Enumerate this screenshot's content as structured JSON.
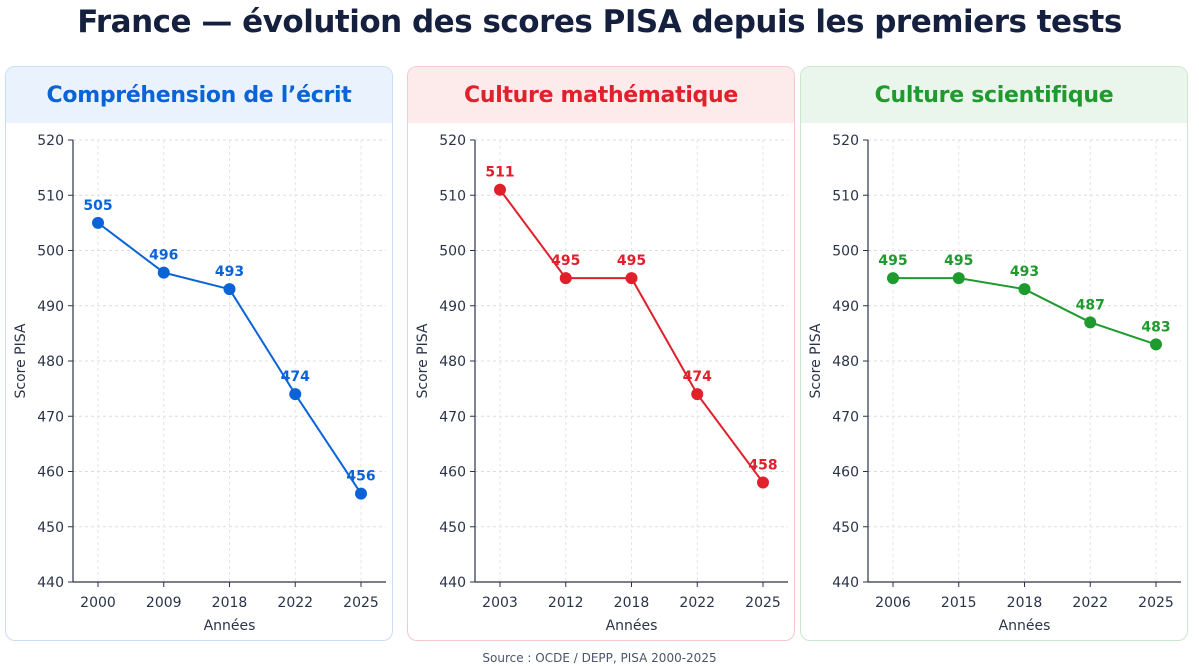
{
  "title": "France — évolution des scores PISA depuis les premiers tests",
  "source": "Source : OCDE / DEPP, PISA 2000-2025",
  "chart_data": [
    {
      "type": "line",
      "title": "Compréhension de l’écrit",
      "xlabel": "Années",
      "ylabel": "Score PISA",
      "ylim": [
        440,
        520
      ],
      "yticks": [
        440,
        450,
        460,
        470,
        480,
        490,
        500,
        510,
        520
      ],
      "categories": [
        "2000",
        "2009",
        "2018",
        "2022",
        "2025"
      ],
      "values": [
        505,
        496,
        493,
        474,
        456
      ],
      "data_labels": [
        "505",
        "496",
        "493",
        "474",
        "456"
      ],
      "grid": true,
      "color": "#0a64d8",
      "header_bg": "#eaf3fd",
      "border": "#c9def5"
    },
    {
      "type": "line",
      "title": "Culture mathématique",
      "xlabel": "Années",
      "ylabel": "Score PISA",
      "ylim": [
        440,
        520
      ],
      "yticks": [
        440,
        450,
        460,
        470,
        480,
        490,
        500,
        510,
        520
      ],
      "categories": [
        "2003",
        "2012",
        "2018",
        "2022",
        "2025"
      ],
      "values": [
        511,
        495,
        495,
        474,
        458
      ],
      "data_labels": [
        "511",
        "495",
        "495",
        "474",
        "458"
      ],
      "grid": true,
      "color": "#e0202b",
      "header_bg": "#fdebec",
      "border": "#f5c9cc"
    },
    {
      "type": "line",
      "title": "Culture scientifique",
      "xlabel": "Années",
      "ylabel": "Score PISA",
      "ylim": [
        440,
        520
      ],
      "yticks": [
        440,
        450,
        460,
        470,
        480,
        490,
        500,
        510,
        520
      ],
      "categories": [
        "2006",
        "2015",
        "2018",
        "2022",
        "2025"
      ],
      "values": [
        495,
        495,
        493,
        487,
        483
      ],
      "data_labels": [
        "495",
        "495",
        "493",
        "487",
        "483"
      ],
      "grid": true,
      "color": "#1f9a2e",
      "header_bg": "#eaf6ec",
      "border": "#c9e8cd"
    }
  ]
}
